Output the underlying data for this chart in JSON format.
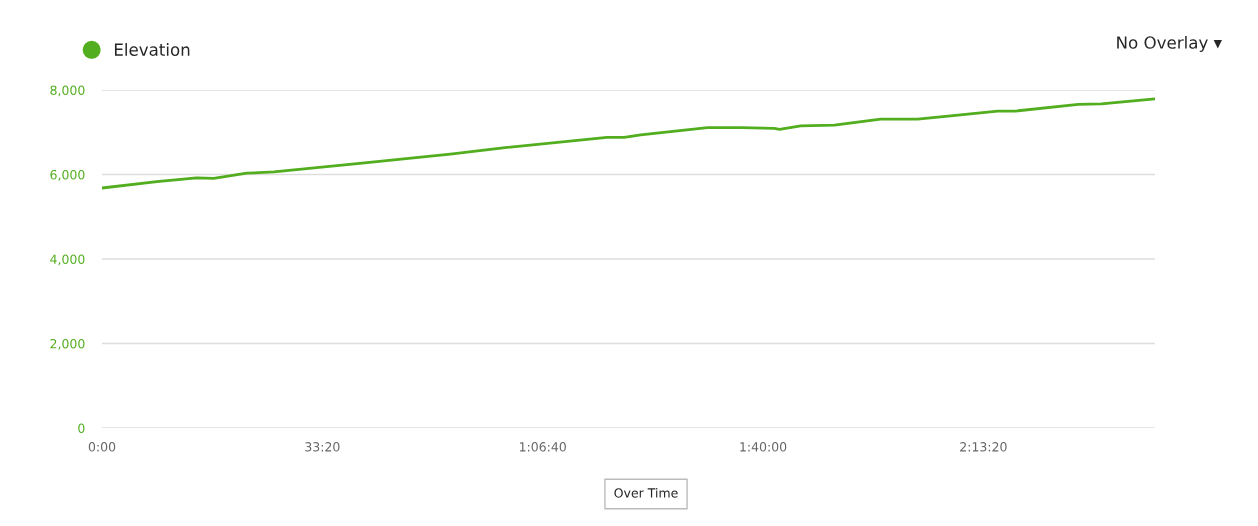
{
  "chart_data": {
    "type": "line",
    "x": [
      0,
      8.3,
      14.3,
      16.9,
      21.9,
      26,
      38.6,
      52.7,
      61.3,
      76.4,
      79,
      81.5,
      91.6,
      96.7,
      101.7,
      102.5,
      105.7,
      110.8,
      117.8,
      123.4,
      128,
      135.5,
      138.1,
      147.7,
      151.2,
      159.3
    ],
    "series": [
      {
        "name": "Elevation",
        "color": "#52ae1f",
        "values": [
          5680,
          5830,
          5920,
          5910,
          6030,
          6060,
          6260,
          6480,
          6640,
          6880,
          6880,
          6940,
          7110,
          7110,
          7090,
          7070,
          7150,
          7170,
          7310,
          7310,
          7380,
          7500,
          7500,
          7660,
          7670,
          7790
        ]
      }
    ],
    "xlim": [
      0,
      159.3
    ],
    "ylim": [
      0,
      8000
    ],
    "xticks": [
      {
        "value": 0,
        "label": "0:00"
      },
      {
        "value": 33.3333,
        "label": "33:20"
      },
      {
        "value": 66.6667,
        "label": "1:06:40"
      },
      {
        "value": 100,
        "label": "1:40:00"
      },
      {
        "value": 133.3333,
        "label": "2:13:20"
      }
    ],
    "yticks": [
      0,
      {
        "value": 2000,
        "label": "2,000"
      },
      {
        "value": 4000,
        "label": "4,000"
      },
      {
        "value": 6000,
        "label": "6,000"
      },
      {
        "value": 8000,
        "label": "8,000"
      }
    ],
    "grid": "y",
    "legend": "top left",
    "marker": "none",
    "line_style": "solid",
    "annotations": [
      "No Overlay ▾",
      "Over Time"
    ]
  }
}
